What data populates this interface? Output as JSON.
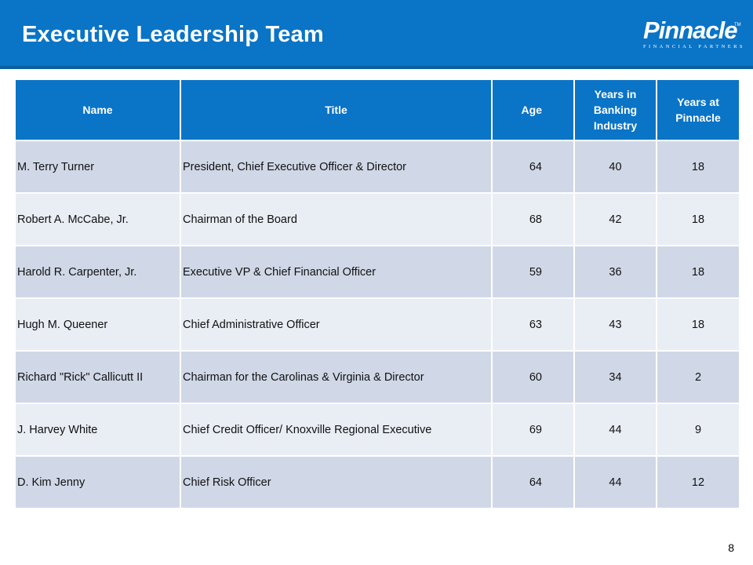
{
  "header": {
    "title": "Executive Leadership Team",
    "logo_name": "Pinnacle",
    "logo_tm": "TM",
    "logo_tagline": "FINANCIAL PARTNERS"
  },
  "table": {
    "columns": {
      "name": "Name",
      "title": "Title",
      "age": "Age",
      "years_banking": "Years in Banking Industry",
      "years_pinnacle": "Years at Pinnacle"
    },
    "rows": [
      {
        "name": "M. Terry Turner",
        "title": "President, Chief Executive Officer & Director",
        "age": "64",
        "years_banking": "40",
        "years_pinnacle": "18"
      },
      {
        "name": "Robert A. McCabe, Jr.",
        "title": "Chairman of the Board",
        "age": "68",
        "years_banking": "42",
        "years_pinnacle": "18"
      },
      {
        "name": "Harold R. Carpenter, Jr.",
        "title": "Executive VP & Chief Financial Officer",
        "age": "59",
        "years_banking": "36",
        "years_pinnacle": "18"
      },
      {
        "name": "Hugh M. Queener",
        "title": "Chief Administrative Officer",
        "age": "63",
        "years_banking": "43",
        "years_pinnacle": "18"
      },
      {
        "name": "Richard \"Rick\" Callicutt II",
        "title": "Chairman for the Carolinas & Virginia & Director",
        "age": "60",
        "years_banking": "34",
        "years_pinnacle": "2"
      },
      {
        "name": "J. Harvey White",
        "title": "Chief Credit Officer/ Knoxville Regional Executive",
        "age": "69",
        "years_banking": "44",
        "years_pinnacle": "9"
      },
      {
        "name": "D. Kim Jenny",
        "title": "Chief Risk Officer",
        "age": "64",
        "years_banking": "44",
        "years_pinnacle": "12"
      }
    ]
  },
  "footer": {
    "page_number": "8"
  },
  "colors": {
    "header_blue": "#0a74c6",
    "row_dark": "#d0d8e7",
    "row_light": "#e9edf4"
  }
}
